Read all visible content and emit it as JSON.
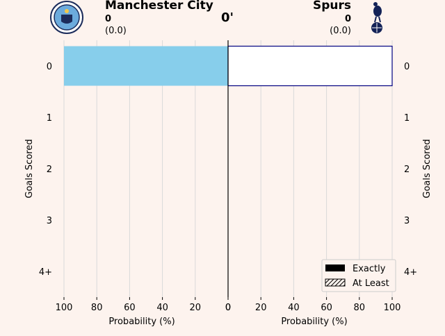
{
  "header": {
    "home": {
      "name": "Manchester City",
      "score": "0",
      "xg": "(0.0)"
    },
    "away": {
      "name": "Spurs",
      "score": "0",
      "xg": "(0.0)"
    },
    "minute": "0'"
  },
  "colors": {
    "background": "#fdf3ee",
    "home_bar": "#87ceeb",
    "away_bar_fill": "#ffffff",
    "away_bar_edge": "#000080",
    "grid": "#d9d9d9"
  },
  "chart_data": [
    {
      "type": "bar",
      "orientation": "horizontal",
      "side": "left (inverted x)",
      "team": "Manchester City",
      "categories": [
        "0",
        "1",
        "2",
        "3",
        "4+"
      ],
      "values": [
        100,
        0,
        0,
        0,
        0
      ],
      "xlabel": "Probability (%)",
      "ylabel": "Goals Scored",
      "xlim": [
        100,
        0
      ],
      "xticks": [
        "100",
        "80",
        "60",
        "40",
        "20",
        "0"
      ],
      "grid": true
    },
    {
      "type": "bar",
      "orientation": "horizontal",
      "side": "right",
      "team": "Spurs",
      "categories": [
        "0",
        "1",
        "2",
        "3",
        "4+"
      ],
      "values": [
        100,
        0,
        0,
        0,
        0
      ],
      "xlabel": "Probability (%)",
      "ylabel": "Goals Scored",
      "xlim": [
        0,
        100
      ],
      "xticks": [
        "0",
        "20",
        "40",
        "60",
        "80",
        "100"
      ],
      "grid": true
    }
  ],
  "legend": {
    "position": "lower-right",
    "entries": [
      {
        "label": "Exactly",
        "style": "solid"
      },
      {
        "label": "At Least",
        "style": "hatched"
      }
    ]
  }
}
